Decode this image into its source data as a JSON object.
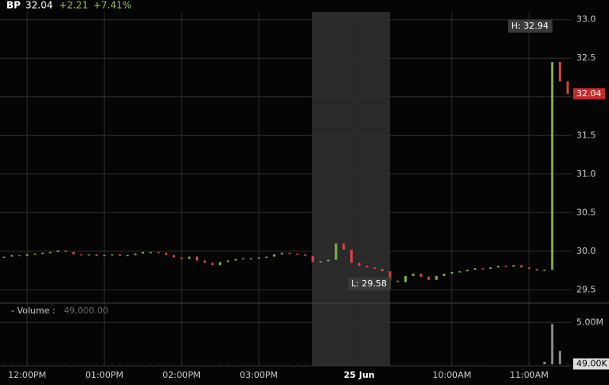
{
  "chart_data": {
    "type": "stock",
    "symbol": "BP",
    "last_value": 32.04,
    "change": "+2.21",
    "change_pct": "+7.41%",
    "high_label": "H: 32.94",
    "low_label": "L: 29.58",
    "categories": [
      null,
      null,
      null,
      "12:00PM",
      null,
      null,
      null,
      null,
      null,
      null,
      null,
      null,
      null,
      "01:00PM",
      null,
      null,
      null,
      null,
      null,
      null,
      null,
      null,
      null,
      "02:00PM",
      null,
      null,
      null,
      null,
      null,
      null,
      null,
      null,
      null,
      "03:00PM",
      null,
      null,
      null,
      null,
      null,
      null,
      null,
      null,
      null,
      null,
      null,
      null,
      "25 Jun",
      null,
      null,
      null,
      null,
      null,
      null,
      null,
      null,
      null,
      null,
      null,
      "10:00AM",
      null,
      null,
      null,
      null,
      null,
      null,
      null,
      null,
      null,
      "11:00AM",
      null,
      null,
      null,
      null,
      null
    ],
    "values": [
      29.93,
      29.95,
      29.94,
      29.96,
      29.97,
      29.98,
      29.99,
      30.01,
      29.99,
      29.96,
      29.95,
      29.96,
      29.94,
      29.95,
      29.96,
      29.94,
      29.95,
      29.97,
      29.99,
      29.99,
      29.98,
      29.95,
      29.92,
      29.9,
      29.93,
      29.88,
      29.85,
      29.82,
      29.86,
      29.88,
      29.9,
      29.91,
      29.91,
      29.92,
      29.93,
      29.96,
      29.98,
      29.97,
      29.96,
      29.94,
      29.86,
      29.87,
      29.89,
      30.1,
      30.02,
      29.85,
      29.81,
      29.79,
      29.77,
      29.74,
      29.62,
      29.6,
      29.68,
      29.71,
      29.67,
      29.63,
      29.68,
      29.71,
      29.73,
      29.74,
      29.76,
      29.78,
      29.77,
      29.79,
      29.81,
      29.8,
      29.82,
      29.79,
      29.77,
      29.75,
      29.76,
      32.45,
      32.2,
      32.04
    ],
    "up_color": "#7cb342",
    "down_color": "#d84343",
    "ylim": [
      29.38,
      33.1
    ],
    "yticks": [
      29.5,
      {
        "value": 30,
        "label": "30.0"
      },
      30.5,
      {
        "value": 31,
        "label": "31.0"
      },
      31.5,
      {
        "value": 32,
        "label": "32.0"
      },
      32.5,
      {
        "value": 33,
        "label": "33.0"
      }
    ],
    "volume": {
      "name": "Volume",
      "legend_label": "- Volume :",
      "legend_value": "49,000.00",
      "last_label": "49.00K",
      "color": "#8a8a8a",
      "values": [
        20000,
        20000,
        20000,
        20000,
        20000,
        20000,
        20000,
        20000,
        20000,
        20000,
        20000,
        20000,
        20000,
        20000,
        20000,
        20000,
        20000,
        20000,
        20000,
        20000,
        20000,
        20000,
        20000,
        20000,
        20000,
        20000,
        20000,
        20000,
        20000,
        20000,
        20000,
        20000,
        20000,
        20000,
        20000,
        20000,
        20000,
        20000,
        20000,
        20000,
        20000,
        20000,
        20000,
        20000,
        20000,
        20000,
        20000,
        20000,
        20000,
        20000,
        20000,
        20000,
        20000,
        20000,
        20000,
        20000,
        20000,
        20000,
        20000,
        20000,
        20000,
        20000,
        20000,
        20000,
        20000,
        20000,
        20000,
        20000,
        20000,
        20000,
        300000,
        4800000,
        1600000,
        49000
      ],
      "ylim": [
        0,
        5500000
      ],
      "yticks": [
        {
          "value": 5000000,
          "label": "5.00M"
        }
      ]
    }
  }
}
